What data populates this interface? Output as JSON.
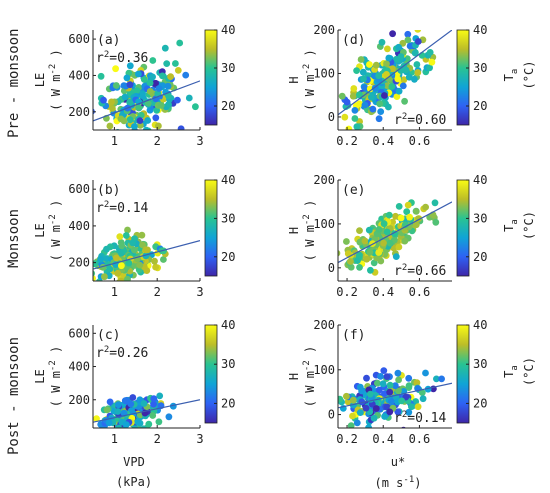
{
  "figure": {
    "row_labels": [
      "Pre - monsoon",
      "Monsoon",
      "Post - monsoon"
    ]
  },
  "colorbar": {
    "ticks": [
      "40",
      "30",
      "20"
    ],
    "label_left": [
      {
        "main": "",
        "sub": ""
      },
      {
        "main": "",
        "sub": ""
      },
      {
        "main": "",
        "sub": ""
      },
      {
        "main": "T",
        "sub": "a"
      },
      {
        "main": "T",
        "sub": "a"
      },
      {
        "main": "T",
        "sub": "a"
      }
    ],
    "unit": "(°C)"
  },
  "axis_labels": {
    "left_y": {
      "var": "LE",
      "unit": "( W m",
      "exp": "-2",
      "close": ")"
    },
    "right_y": {
      "var": "H",
      "unit": "( W m",
      "exp": "-2",
      "close": ")"
    },
    "left_x": {
      "var": "VPD",
      "unit": "(kPa)"
    },
    "right_x": {
      "var": "u*",
      "unit": "(m s",
      "exp": "-1",
      "close": ")"
    }
  },
  "chart_data": [
    {
      "id": "a",
      "panel_label": "(a)",
      "type": "scatter",
      "r2_text": "=0.36",
      "r2_prefix": "r",
      "r2_exp": "2",
      "xlim": [
        0.5,
        3
      ],
      "ylim": [
        100,
        650
      ],
      "xticks": [
        "1",
        "2",
        "3"
      ],
      "yticks": [
        "200",
        "400",
        "600"
      ],
      "xtick_vals": [
        1,
        2,
        3
      ],
      "ytick_vals": [
        200,
        400,
        600
      ],
      "fit": {
        "x": [
          0.5,
          3
        ],
        "y": [
          150,
          370
        ]
      },
      "cluster": {
        "x_mean": 1.6,
        "x_sd": 0.45,
        "y_mean": 250,
        "y_sd": 95,
        "slope": 90,
        "n": 230,
        "c_mean": 28,
        "c_sd": 6
      }
    },
    {
      "id": "b",
      "panel_label": "(b)",
      "type": "scatter",
      "r2_text": "=0.14",
      "r2_prefix": "r",
      "r2_exp": "2",
      "xlim": [
        0.5,
        3
      ],
      "ylim": [
        100,
        650
      ],
      "xticks": [
        "1",
        "2",
        "3"
      ],
      "yticks": [
        "200",
        "400",
        "600"
      ],
      "xtick_vals": [
        1,
        2,
        3
      ],
      "ytick_vals": [
        200,
        400,
        600
      ],
      "fit": {
        "x": [
          0.5,
          3
        ],
        "y": [
          165,
          320
        ]
      },
      "cluster": {
        "x_mean": 1.3,
        "x_sd": 0.35,
        "y_mean": 210,
        "y_sd": 55,
        "slope": 50,
        "n": 200,
        "c_mean": 32,
        "c_sd": 4
      }
    },
    {
      "id": "c",
      "panel_label": "(c)",
      "type": "scatter",
      "r2_text": "=0.26",
      "r2_prefix": "r",
      "r2_exp": "2",
      "xlim": [
        0.5,
        3
      ],
      "ylim": [
        30,
        650
      ],
      "xticks": [
        "1",
        "2",
        "3"
      ],
      "yticks": [
        "200",
        "400",
        "600"
      ],
      "xtick_vals": [
        1,
        2,
        3
      ],
      "ytick_vals": [
        200,
        400,
        600
      ],
      "fit": {
        "x": [
          0.5,
          3
        ],
        "y": [
          65,
          200
        ]
      },
      "cluster": {
        "x_mean": 1.35,
        "x_sd": 0.35,
        "y_mean": 115,
        "y_sd": 45,
        "slope": 45,
        "n": 190,
        "c_mean": 25,
        "c_sd": 6
      }
    },
    {
      "id": "d",
      "panel_label": "(d)",
      "type": "scatter",
      "r2_text": "=0.60",
      "r2_prefix": "r",
      "r2_exp": "2",
      "xlim": [
        0.15,
        0.78
      ],
      "ylim": [
        -30,
        200
      ],
      "xticks": [
        "0.2",
        "0.4",
        "0.6"
      ],
      "yticks": [
        "0",
        "100",
        "200"
      ],
      "xtick_vals": [
        0.2,
        0.4,
        0.6
      ],
      "ytick_vals": [
        0,
        100,
        200
      ],
      "fit": {
        "x": [
          0.15,
          0.78
        ],
        "y": [
          5,
          200
        ]
      },
      "cluster": {
        "x_mean": 0.42,
        "x_sd": 0.11,
        "y_mean": 90,
        "y_sd": 35,
        "slope": 300,
        "n": 240,
        "c_mean": 30,
        "c_sd": 6
      }
    },
    {
      "id": "e",
      "panel_label": "(e)",
      "type": "scatter",
      "r2_text": "=0.66",
      "r2_prefix": "r",
      "r2_exp": "2",
      "xlim": [
        0.15,
        0.78
      ],
      "ylim": [
        -30,
        200
      ],
      "xticks": [
        "0.2",
        "0.4",
        "0.6"
      ],
      "yticks": [
        "0",
        "100",
        "200"
      ],
      "xtick_vals": [
        0.2,
        0.4,
        0.6
      ],
      "ytick_vals": [
        0,
        100,
        200
      ],
      "fit": {
        "x": [
          0.15,
          0.78
        ],
        "y": [
          12,
          150
        ]
      },
      "cluster": {
        "x_mean": 0.42,
        "x_sd": 0.11,
        "y_mean": 70,
        "y_sd": 22,
        "slope": 220,
        "n": 220,
        "c_mean": 33,
        "c_sd": 3
      }
    },
    {
      "id": "f",
      "panel_label": "(f)",
      "type": "scatter",
      "r2_text": "=0.14",
      "r2_prefix": "r",
      "r2_exp": "2",
      "xlim": [
        0.15,
        0.78
      ],
      "ylim": [
        -30,
        200
      ],
      "xticks": [
        "0.2",
        "0.4",
        "0.6"
      ],
      "yticks": [
        "0",
        "100",
        "200"
      ],
      "xtick_vals": [
        0.2,
        0.4,
        0.6
      ],
      "ytick_vals": [
        0,
        100,
        200
      ],
      "fit": {
        "x": [
          0.15,
          0.78
        ],
        "y": [
          15,
          70
        ]
      },
      "cluster": {
        "x_mean": 0.4,
        "x_sd": 0.11,
        "y_mean": 38,
        "y_sd": 22,
        "slope": 60,
        "n": 200,
        "c_mean": 26,
        "c_sd": 6
      }
    }
  ]
}
